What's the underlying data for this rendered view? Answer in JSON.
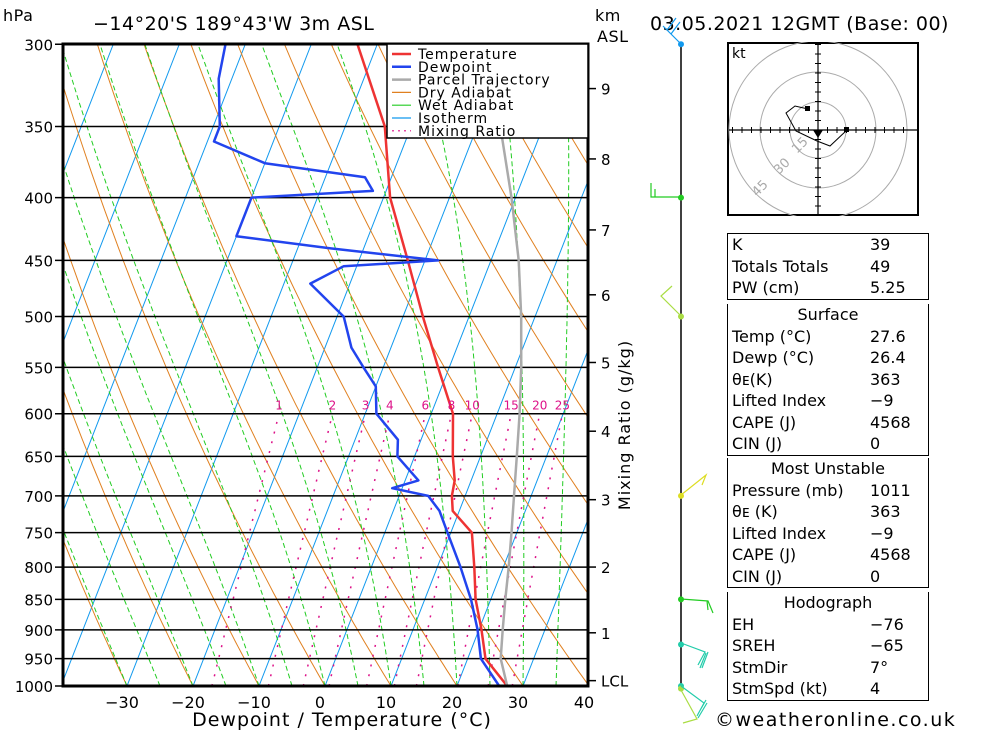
{
  "header": {
    "pressure_unit": "hPa",
    "location": "−14°20'S  189°43'W  3m  ASL",
    "height_unit_line1": "km",
    "height_unit_line2": "ASL",
    "datetime": "03.05.2021  12GMT  (Base: 00)"
  },
  "chart_data": {
    "type": "line",
    "title": "−14°20'S 189°43'W 3m ASL",
    "xlabel": "Dewpoint / Temperature (°C)",
    "ylabel": "hPa",
    "y2label": "Mixing Ratio (g/kg)",
    "xlim": [
      -40,
      40
    ],
    "ylim": [
      1000,
      300
    ],
    "x_ticks": [
      -30,
      -20,
      -10,
      0,
      10,
      20,
      30,
      40
    ],
    "pressure_ticks": [
      300,
      350,
      400,
      450,
      500,
      550,
      600,
      650,
      700,
      750,
      800,
      850,
      900,
      950,
      1000
    ],
    "km_ticks": [
      {
        "label": "9",
        "p": 326
      },
      {
        "label": "8",
        "p": 372
      },
      {
        "label": "7",
        "p": 425
      },
      {
        "label": "6",
        "p": 480
      },
      {
        "label": "5",
        "p": 545
      },
      {
        "label": "4",
        "p": 620
      },
      {
        "label": "3",
        "p": 705
      },
      {
        "label": "2",
        "p": 800
      },
      {
        "label": "1",
        "p": 905
      },
      {
        "label": "LCL",
        "p": 990
      }
    ],
    "mixing_ratio_labels": [
      "1",
      "2",
      "3",
      "4",
      "6",
      "8",
      "10",
      "15",
      "20",
      "25"
    ],
    "legend": [
      "Temperature",
      "Dewpoint",
      "Parcel Trajectory",
      "Dry Adiabat",
      "Wet Adiabat",
      "Isotherm",
      "Mixing Ratio"
    ],
    "legend_position": "top-right",
    "series": [
      {
        "name": "Temperature",
        "color": "#ee3333",
        "p": [
          1000,
          950,
          900,
          850,
          800,
          750,
          720,
          700,
          680,
          650,
          600,
          550,
          500,
          450,
          400,
          350,
          300
        ],
        "t": [
          27.6,
          22.7,
          20.4,
          17.7,
          15.6,
          13.2,
          9.0,
          8.0,
          7.5,
          5.8,
          3.3,
          -1.7,
          -7.0,
          -12.6,
          -19.0,
          -24.0,
          -33.0
        ]
      },
      {
        "name": "Dewpoint",
        "color": "#2244ee",
        "p": [
          1000,
          950,
          900,
          850,
          800,
          750,
          720,
          700,
          690,
          680,
          650,
          630,
          600,
          570,
          550,
          530,
          500,
          470,
          455,
          450,
          440,
          430,
          400,
          395,
          385,
          375,
          360,
          350,
          320,
          300
        ],
        "t": [
          26.4,
          22.0,
          19.8,
          17.0,
          13.5,
          9.5,
          7.0,
          4.4,
          -1.5,
          2.0,
          -2.6,
          -3.5,
          -8.3,
          -10.0,
          -13.0,
          -16.0,
          -19.0,
          -26.0,
          -22.0,
          -8.0,
          -25.0,
          -40.0,
          -40.0,
          -22.0,
          -24.0,
          -40.0,
          -49.0,
          -49.0,
          -52.0,
          -53.0
        ]
      },
      {
        "name": "Parcel Trajectory",
        "color": "#aaaaaa",
        "p": [
          1000,
          950,
          900,
          850,
          800,
          750,
          700,
          650,
          600,
          550,
          500,
          450,
          400,
          350
        ],
        "t": [
          27.6,
          25.0,
          23.6,
          22.2,
          20.8,
          19.2,
          17.4,
          15.5,
          13.4,
          10.9,
          7.9,
          4.2,
          -0.6,
          -6.5
        ]
      }
    ]
  },
  "legend_items": [
    {
      "label": "Temperature",
      "color": "#ee3333",
      "style": "solid-thick"
    },
    {
      "label": "Dewpoint",
      "color": "#2244ee",
      "style": "solid-thick"
    },
    {
      "label": "Parcel Trajectory",
      "color": "#aaaaaa",
      "style": "solid-thick"
    },
    {
      "label": "Dry Adiabat",
      "color": "#e08020",
      "style": "solid"
    },
    {
      "label": "Wet Adiabat",
      "color": "#22cc22",
      "style": "solid"
    },
    {
      "label": "Isotherm",
      "color": "#1199ee",
      "style": "solid"
    },
    {
      "label": "Mixing Ratio",
      "color": "#dd1188",
      "style": "dotted"
    }
  ],
  "wind_barbs": [
    {
      "p": 300,
      "color": "#1199ee"
    },
    {
      "p": 400,
      "color": "#22cc22"
    },
    {
      "p": 500,
      "color": "#aadd44"
    },
    {
      "p": 700,
      "color": "#dddd22"
    },
    {
      "p": 850,
      "color": "#22cc22"
    },
    {
      "p": 925,
      "color": "#22ccaa"
    },
    {
      "p": 1000,
      "color": "#22ccaa"
    },
    {
      "p": 1005,
      "color": "#aadd44"
    }
  ],
  "hodograph": {
    "unit_label": "kt",
    "ring_labels": [
      "15",
      "30",
      "45"
    ]
  },
  "indices": [
    {
      "label": "K",
      "value": "39"
    },
    {
      "label": "Totals Totals",
      "value": "49"
    },
    {
      "label": "PW (cm)",
      "value": "5.25"
    }
  ],
  "surface": {
    "title": "Surface",
    "rows": [
      {
        "label": "Temp (°C)",
        "value": "27.6"
      },
      {
        "label": "Dewp (°C)",
        "value": "26.4"
      },
      {
        "label": "θᴇ(K)",
        "value": "363"
      },
      {
        "label": "Lifted Index",
        "value": "−9"
      },
      {
        "label": "CAPE (J)",
        "value": "4568"
      },
      {
        "label": "CIN (J)",
        "value": "0"
      }
    ]
  },
  "most_unstable": {
    "title": "Most Unstable",
    "rows": [
      {
        "label": "Pressure (mb)",
        "value": "1011"
      },
      {
        "label": "θᴇ (K)",
        "value": "363"
      },
      {
        "label": "Lifted Index",
        "value": "−9"
      },
      {
        "label": "CAPE (J)",
        "value": "4568"
      },
      {
        "label": "CIN (J)",
        "value": "0"
      }
    ]
  },
  "hodograph_stats": {
    "title": "Hodograph",
    "rows": [
      {
        "label": "EH",
        "value": "−76"
      },
      {
        "label": "SREH",
        "value": "−65"
      },
      {
        "label": "StmDir",
        "value": "7°"
      },
      {
        "label": "StmSpd (kt)",
        "value": "4"
      }
    ]
  },
  "footer": {
    "copyright": "©weatheronline.co.uk"
  }
}
